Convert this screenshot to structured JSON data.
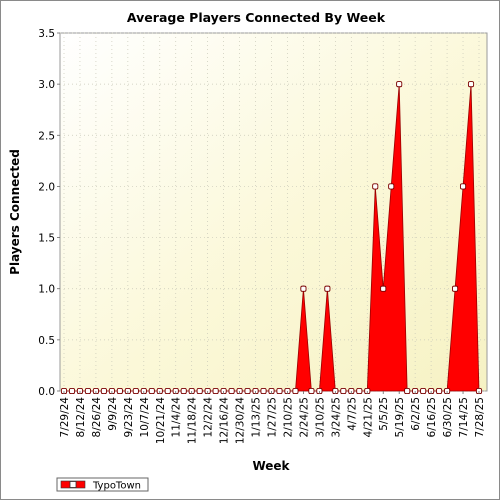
{
  "chart_data": {
    "type": "area",
    "title": "Average Players Connected By Week",
    "xlabel": "Week",
    "ylabel": "Players Connected",
    "ylim": [
      0,
      3.5
    ],
    "yticks": [
      "0.0",
      "0.5",
      "1.0",
      "1.5",
      "2.0",
      "2.5",
      "3.0",
      "3.5"
    ],
    "grid": true,
    "legend_position": "bottom-left",
    "x": [
      "7/29/24",
      "8/5/24",
      "8/12/24",
      "8/19/24",
      "8/26/24",
      "9/2/24",
      "9/9/24",
      "9/16/24",
      "9/23/24",
      "9/30/24",
      "10/7/24",
      "10/14/24",
      "10/21/24",
      "10/28/24",
      "11/4/24",
      "11/11/24",
      "11/18/24",
      "11/25/24",
      "12/2/24",
      "12/9/24",
      "12/16/24",
      "12/23/24",
      "12/30/24",
      "1/6/25",
      "1/13/25",
      "1/20/25",
      "1/27/25",
      "2/3/25",
      "2/10/25",
      "2/17/25",
      "2/24/25",
      "3/3/25",
      "3/10/25",
      "3/17/25",
      "3/24/25",
      "3/31/25",
      "4/7/25",
      "4/14/25",
      "4/21/25",
      "4/28/25",
      "5/5/25",
      "5/12/25",
      "5/19/25",
      "5/26/25",
      "6/2/25",
      "6/9/25",
      "6/16/25",
      "6/23/25",
      "6/30/25",
      "7/7/25",
      "7/14/25",
      "7/21/25",
      "7/28/25"
    ],
    "x_tick_labels": [
      "7/29/24",
      "8/12/24",
      "8/26/24",
      "9/9/24",
      "9/23/24",
      "10/7/24",
      "10/21/24",
      "11/4/24",
      "11/18/24",
      "12/2/24",
      "12/16/24",
      "12/30/24",
      "1/13/25",
      "1/27/25",
      "2/10/25",
      "2/24/25",
      "3/10/25",
      "3/24/25",
      "4/7/25",
      "4/21/25",
      "5/5/25",
      "5/19/25",
      "6/2/25",
      "6/16/25",
      "6/30/25",
      "7/14/25",
      "7/28/25"
    ],
    "series": [
      {
        "name": "TypoTown",
        "color": "#ff0000",
        "values": [
          0,
          0,
          0,
          0,
          0,
          0,
          0,
          0,
          0,
          0,
          0,
          0,
          0,
          0,
          0,
          0,
          0,
          0,
          0,
          0,
          0,
          0,
          0,
          0,
          0,
          0,
          0,
          0,
          0,
          0,
          1,
          0,
          0,
          1,
          0,
          0,
          0,
          0,
          0,
          2,
          1,
          2,
          3,
          0,
          0,
          0,
          0,
          0,
          0,
          1,
          2,
          3,
          0
        ]
      }
    ]
  }
}
